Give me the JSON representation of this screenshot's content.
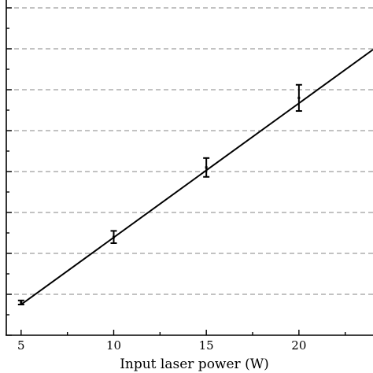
{
  "chart_data": {
    "type": "scatter",
    "title": "",
    "xlabel": "Input laser power (W)",
    "ylabel": "",
    "xlim": [
      4.2,
      24.0
    ],
    "x_ticks": [
      5,
      10,
      15,
      20
    ],
    "x_tick_labels": [
      "5",
      "10",
      "15",
      "20"
    ],
    "grid": "horizontal-dashed",
    "series": [
      {
        "x": [
          5,
          10,
          15,
          20
        ],
        "y": [
          0.8,
          2.4,
          4.1,
          5.8
        ],
        "y_error": [
          0.05,
          0.15,
          0.23,
          0.32
        ]
      }
    ],
    "fit_line": {
      "x": [
        5,
        24
      ],
      "y": [
        0.75,
        6.98
      ]
    },
    "colors": {
      "line": "#000000",
      "grid": "#9e9e9e",
      "axes": "#000000"
    }
  }
}
